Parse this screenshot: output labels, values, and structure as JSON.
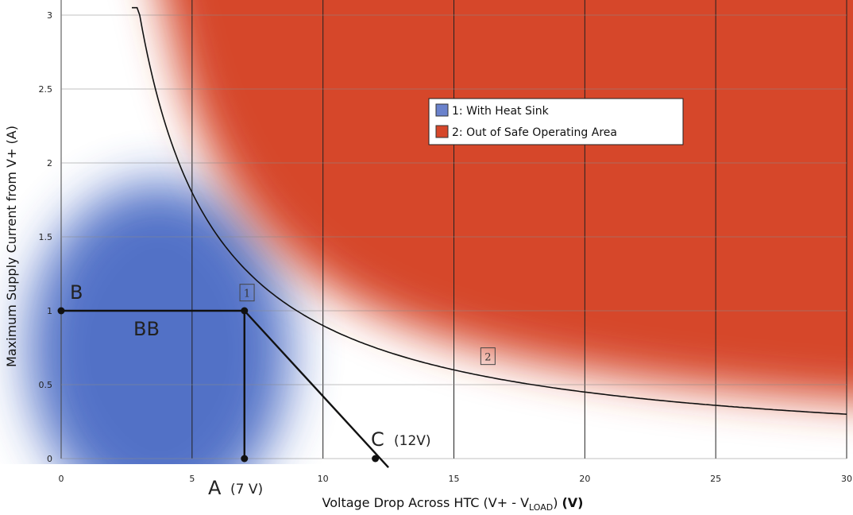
{
  "chart_data": {
    "type": "area",
    "xlabel_main": "Voltage Drop Across HTC (V+ - V",
    "xlabel_sub": "LOAD",
    "xlabel_end": ")",
    "xlabel_unit": "(V)",
    "ylabel": "Maximum Supply Current from V+ (A)",
    "xlim": [
      0,
      30
    ],
    "ylim": [
      0,
      3
    ],
    "x_ticks": [
      "0",
      "5",
      "10",
      "15",
      "20",
      "25",
      "30"
    ],
    "y_ticks": [
      "0",
      "0.5",
      "1",
      "1.5",
      "2",
      "2.5",
      "3"
    ],
    "grid": true,
    "legend_position": "top-center",
    "series": [
      {
        "name": "1:  With Heat Sink",
        "color": "#4a6bc4"
      },
      {
        "name": "2:  Out of Safe Operating Area",
        "color": "#d6472a"
      }
    ],
    "boundary_curve": {
      "note_power": 9,
      "x": [
        2.7,
        3,
        4,
        5,
        6,
        7,
        8,
        10,
        12,
        15,
        20,
        25,
        30
      ],
      "y": [
        3.0,
        3.0,
        2.25,
        1.8,
        1.5,
        1.286,
        1.125,
        0.9,
        0.75,
        0.6,
        0.45,
        0.36,
        0.3
      ]
    },
    "lines": [
      {
        "from": [
          0,
          1
        ],
        "to": [
          7,
          1
        ]
      },
      {
        "from": [
          7,
          1
        ],
        "to": [
          7,
          0
        ]
      },
      {
        "from": [
          7,
          1
        ],
        "to": [
          12.5,
          -0.06
        ]
      }
    ],
    "points": [
      {
        "name": "A",
        "x": 7,
        "y": 0,
        "label": "A",
        "sub": "(7 V)"
      },
      {
        "name": "B",
        "x": 0,
        "y": 1,
        "label": "B",
        "sub": ""
      },
      {
        "name": "C",
        "x": 12,
        "y": 0,
        "label": "C",
        "sub": "(12V)"
      },
      {
        "name": "corner",
        "x": 7,
        "y": 1
      }
    ],
    "annotations": [
      {
        "text": "BB"
      },
      {
        "text": "1",
        "boxed": true,
        "x": 7.1,
        "y": 1.12
      },
      {
        "text": "2",
        "boxed": true,
        "x": 16.3,
        "y": 0.69
      }
    ]
  }
}
